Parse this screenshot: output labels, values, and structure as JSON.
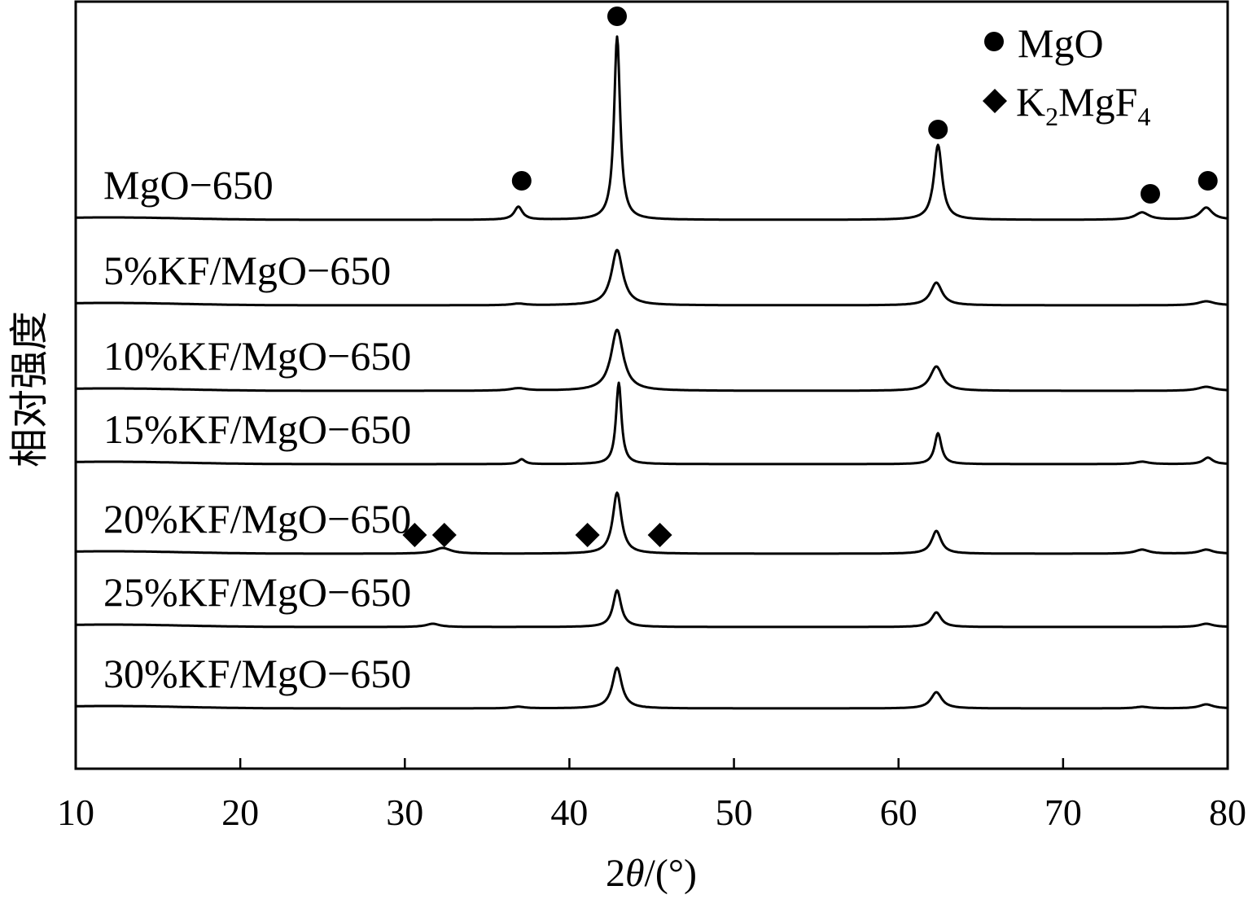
{
  "chart_data": {
    "type": "line",
    "title": "",
    "xlabel_parts": {
      "lead": "2",
      "theta": "θ",
      "unit": "/(°)"
    },
    "ylabel": "相对强度",
    "xlim": [
      10,
      80
    ],
    "xticks": [
      10,
      20,
      30,
      40,
      50,
      60,
      70,
      80
    ],
    "yticks_shown": false,
    "legend": {
      "placement": "top-right",
      "entries": [
        {
          "symbol": "circle",
          "label": "MgO"
        },
        {
          "symbol": "diamond",
          "label_main": "K",
          "sub1": "2",
          "label_mid": "MgF",
          "sub2": "4"
        }
      ]
    },
    "series": [
      {
        "name": "MgO-650",
        "label": "MgO−650",
        "baseline": 0,
        "peaks": [
          {
            "x": 36.9,
            "h": 0.16,
            "w": 0.3
          },
          {
            "x": 42.9,
            "h": 2.25,
            "w": 0.22
          },
          {
            "x": 62.4,
            "h": 0.92,
            "w": 0.3
          },
          {
            "x": 74.8,
            "h": 0.09,
            "w": 0.5
          },
          {
            "x": 78.7,
            "h": 0.15,
            "w": 0.45
          }
        ],
        "markers": [
          {
            "type": "circle",
            "x": 37.1,
            "y": 0.48
          },
          {
            "type": "circle",
            "x": 42.9,
            "y": 2.5
          },
          {
            "type": "circle",
            "x": 62.4,
            "y": 1.11
          },
          {
            "type": "circle",
            "x": 75.3,
            "y": 0.32
          },
          {
            "type": "circle",
            "x": 78.8,
            "y": 0.48
          }
        ]
      },
      {
        "name": "5%KF/MgO-650",
        "label": "5%KF/MgO−650",
        "baseline": -1.05,
        "peaks": [
          {
            "x": 36.9,
            "h": 0.02,
            "w": 0.5
          },
          {
            "x": 42.9,
            "h": 0.68,
            "w": 0.42
          },
          {
            "x": 62.3,
            "h": 0.28,
            "w": 0.42
          },
          {
            "x": 78.7,
            "h": 0.05,
            "w": 0.6
          }
        ],
        "markers": []
      },
      {
        "name": "10%KF/MgO-650",
        "label": "10%KF/MgO−650",
        "baseline": -2.1,
        "peaks": [
          {
            "x": 36.9,
            "h": 0.03,
            "w": 0.6
          },
          {
            "x": 42.9,
            "h": 0.75,
            "w": 0.45
          },
          {
            "x": 62.3,
            "h": 0.3,
            "w": 0.45
          },
          {
            "x": 78.7,
            "h": 0.05,
            "w": 0.6
          }
        ],
        "markers": []
      },
      {
        "name": "15%KF/MgO-650",
        "label": "15%KF/MgO−650",
        "baseline": -3.0,
        "peaks": [
          {
            "x": 37.1,
            "h": 0.06,
            "w": 0.25
          },
          {
            "x": 43.0,
            "h": 1.0,
            "w": 0.2
          },
          {
            "x": 62.4,
            "h": 0.38,
            "w": 0.25
          },
          {
            "x": 74.8,
            "h": 0.03,
            "w": 0.5
          },
          {
            "x": 78.8,
            "h": 0.08,
            "w": 0.35
          }
        ],
        "markers": []
      },
      {
        "name": "20%KF/MgO-650",
        "label": "20%KF/MgO−650",
        "baseline": -4.1,
        "peaks": [
          {
            "x": 32.3,
            "h": 0.07,
            "w": 0.6
          },
          {
            "x": 42.9,
            "h": 0.75,
            "w": 0.32
          },
          {
            "x": 62.3,
            "h": 0.28,
            "w": 0.35
          },
          {
            "x": 74.8,
            "h": 0.05,
            "w": 0.5
          },
          {
            "x": 78.7,
            "h": 0.05,
            "w": 0.5
          }
        ],
        "markers": [
          {
            "type": "diamond",
            "x": 30.6,
            "y": 0.23
          },
          {
            "type": "diamond",
            "x": 32.4,
            "y": 0.23
          },
          {
            "type": "diamond",
            "x": 41.1,
            "y": 0.23
          },
          {
            "type": "diamond",
            "x": 45.5,
            "y": 0.23
          }
        ]
      },
      {
        "name": "25%KF/MgO-650",
        "label": "25%KF/MgO−650",
        "baseline": -5.0,
        "peaks": [
          {
            "x": 31.7,
            "h": 0.04,
            "w": 0.5
          },
          {
            "x": 42.9,
            "h": 0.45,
            "w": 0.3
          },
          {
            "x": 62.3,
            "h": 0.18,
            "w": 0.35
          },
          {
            "x": 78.7,
            "h": 0.04,
            "w": 0.5
          }
        ],
        "markers": []
      },
      {
        "name": "30%KF/MgO-650",
        "label": "30%KF/MgO−650",
        "baseline": -6.0,
        "peaks": [
          {
            "x": 36.9,
            "h": 0.02,
            "w": 0.5
          },
          {
            "x": 42.9,
            "h": 0.5,
            "w": 0.35
          },
          {
            "x": 62.3,
            "h": 0.2,
            "w": 0.4
          },
          {
            "x": 74.8,
            "h": 0.02,
            "w": 0.5
          },
          {
            "x": 78.7,
            "h": 0.05,
            "w": 0.5
          }
        ],
        "markers": []
      }
    ]
  }
}
